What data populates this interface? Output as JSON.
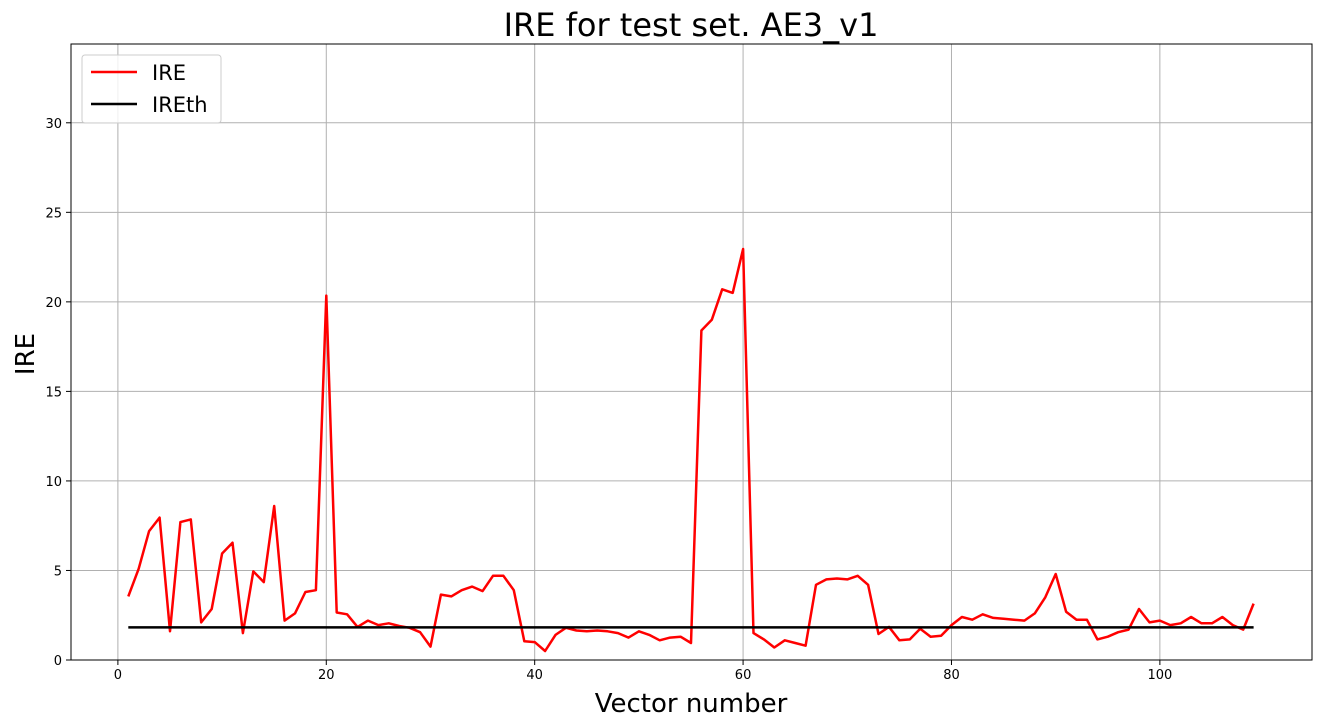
{
  "chart_data": {
    "type": "line",
    "title": "IRE for test set. AE3_v1",
    "xlabel": "Vector number",
    "ylabel": "IRE",
    "xlim": [
      -4.5,
      114.6
    ],
    "ylim": [
      0,
      34.4
    ],
    "xticks": [
      0,
      20,
      40,
      60,
      80,
      100
    ],
    "yticks": [
      0,
      5,
      10,
      15,
      20,
      25,
      30
    ],
    "grid": true,
    "legend_position": "top-left",
    "series": [
      {
        "name": "IRE",
        "color": "#ff0000",
        "x_start": 1,
        "values": [
          3.55,
          5.1,
          7.2,
          7.95,
          1.6,
          7.7,
          7.85,
          2.1,
          2.85,
          5.95,
          6.55,
          1.5,
          4.95,
          4.35,
          8.6,
          2.2,
          2.6,
          3.8,
          3.9,
          20.35,
          2.65,
          2.55,
          1.85,
          2.2,
          1.95,
          2.05,
          1.9,
          1.8,
          1.55,
          0.75,
          3.65,
          3.55,
          3.9,
          4.1,
          3.85,
          4.7,
          4.7,
          3.9,
          1.05,
          1.0,
          0.5,
          1.4,
          1.8,
          1.65,
          1.6,
          1.65,
          1.6,
          1.5,
          1.25,
          1.6,
          1.4,
          1.1,
          1.25,
          1.3,
          0.95,
          18.4,
          19.0,
          20.7,
          20.5,
          22.95,
          1.5,
          1.15,
          0.7,
          1.1,
          0.95,
          0.8,
          4.2,
          4.5,
          4.55,
          4.5,
          4.7,
          4.2,
          1.45,
          1.85,
          1.1,
          1.15,
          1.75,
          1.3,
          1.35,
          1.95,
          2.4,
          2.25,
          2.55,
          2.35,
          2.3,
          2.25,
          2.2,
          2.6,
          3.5,
          4.8,
          2.7,
          2.25,
          2.25,
          1.15,
          1.3,
          1.55,
          1.7,
          2.85,
          2.1,
          2.2,
          1.95,
          2.05,
          2.4,
          2.05,
          2.05,
          2.4,
          1.95,
          1.7,
          3.15
        ]
      },
      {
        "name": "IREth",
        "color": "#000000",
        "x": [
          1,
          109
        ],
        "values": [
          1.82,
          1.82
        ]
      }
    ]
  }
}
